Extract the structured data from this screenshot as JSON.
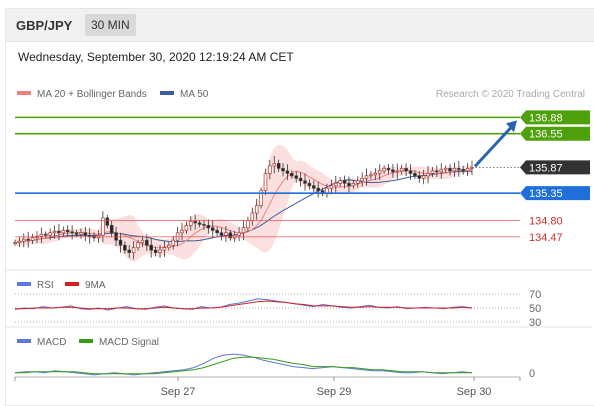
{
  "header": {
    "symbol": "GBP/JPY",
    "interval": "30 MIN",
    "datetime": "Wednesday, September 30, 2020 12:19:24 AM CET"
  },
  "legend": {
    "ma20_label": "MA 20 + Bollinger Bands",
    "ma50_label": "MA 50",
    "credit": "Research © 2020 Trading Central",
    "ma20_color": "#f08080",
    "ma50_color": "#3a5fa0"
  },
  "rsi_legend": {
    "rsi_label": "RSI",
    "ma_label": "9MA",
    "rsi_color": "#5a78d8",
    "ma_color": "#d42020"
  },
  "macd_legend": {
    "macd_label": "MACD",
    "signal_label": "MACD Signal",
    "macd_color": "#5a78d8",
    "signal_color": "#3a9a1a"
  },
  "chart_data": [
    {
      "type": "candlestick",
      "title": "GBP/JPY 30 MIN",
      "x_ticks": [
        "Sep 27",
        "Sep 29",
        "Sep 30"
      ],
      "ylim": [
        133.9,
        137.15
      ],
      "closes": [
        134.35,
        134.38,
        134.42,
        134.4,
        134.45,
        134.48,
        134.52,
        134.5,
        134.55,
        134.58,
        134.55,
        134.6,
        134.57,
        134.55,
        134.52,
        134.55,
        134.5,
        134.48,
        134.45,
        134.5,
        134.85,
        134.7,
        134.55,
        134.4,
        134.3,
        134.2,
        134.15,
        134.25,
        134.35,
        134.4,
        134.3,
        134.2,
        134.15,
        134.2,
        134.25,
        134.3,
        134.4,
        134.55,
        134.6,
        134.7,
        134.78,
        134.75,
        134.72,
        134.7,
        134.65,
        134.6,
        134.55,
        134.5,
        134.55,
        134.45,
        134.5,
        134.55,
        134.65,
        134.8,
        134.95,
        135.1,
        135.4,
        135.75,
        135.9,
        135.95,
        135.85,
        135.8,
        135.75,
        135.7,
        135.65,
        135.6,
        135.55,
        135.5,
        135.45,
        135.4,
        135.35,
        135.45,
        135.5,
        135.55,
        135.6,
        135.55,
        135.5,
        135.55,
        135.6,
        135.65,
        135.7,
        135.72,
        135.75,
        135.8,
        135.85,
        135.82,
        135.78,
        135.8,
        135.85,
        135.8,
        135.75,
        135.7,
        135.65,
        135.7,
        135.75,
        135.8,
        135.78,
        135.82,
        135.85,
        135.8,
        135.85,
        135.83,
        135.8,
        135.85,
        135.87
      ],
      "levels": [
        {
          "label": "136.88",
          "value": 136.88,
          "color": "#4ea10b"
        },
        {
          "label": "136.55",
          "value": 136.55,
          "color": "#4ea10b"
        },
        {
          "label": "135.87",
          "value": 135.87,
          "color": "#333333"
        },
        {
          "label": "135.35",
          "value": 135.35,
          "color": "#1e6fd9"
        },
        {
          "label": "134.80",
          "value": 134.8,
          "color": "#e05050"
        },
        {
          "label": "134.47",
          "value": 134.47,
          "color": "#e05050"
        }
      ],
      "projection": {
        "from": 135.87,
        "to": 136.88,
        "color": "#2a64b0"
      }
    },
    {
      "type": "line",
      "title": "RSI",
      "ticks": [
        "70",
        "50",
        "30"
      ],
      "series": [
        {
          "name": "RSI",
          "values": [
            48,
            50,
            49,
            52,
            50,
            51,
            53,
            49,
            48,
            50,
            47,
            50,
            52,
            49,
            48,
            51,
            53,
            50,
            49,
            48,
            52,
            50,
            51,
            55,
            57,
            60,
            63,
            62,
            60,
            58,
            56,
            54,
            52,
            55,
            53,
            51,
            50,
            52,
            54,
            51,
            50,
            52,
            49,
            50,
            51,
            50,
            49,
            51,
            52,
            50
          ]
        },
        {
          "name": "9MA",
          "values": [
            49,
            49,
            50,
            50,
            50,
            51,
            51,
            50,
            49,
            49,
            49,
            50,
            50,
            49,
            49,
            50,
            51,
            50,
            49,
            49,
            50,
            50,
            51,
            53,
            55,
            57,
            59,
            60,
            59,
            58,
            56,
            55,
            53,
            53,
            53,
            52,
            51,
            51,
            52,
            51,
            51,
            51,
            50,
            50,
            50,
            50,
            50,
            50,
            51,
            50
          ]
        }
      ]
    },
    {
      "type": "line",
      "title": "MACD",
      "ticks": [
        "0"
      ],
      "series": [
        {
          "name": "MACD",
          "values": [
            0.0,
            0.01,
            0.01,
            0.0,
            0.02,
            0.01,
            0.0,
            -0.01,
            -0.02,
            -0.01,
            0.0,
            -0.01,
            -0.02,
            -0.01,
            0.0,
            0.01,
            0.02,
            0.03,
            0.05,
            0.09,
            0.14,
            0.17,
            0.18,
            0.17,
            0.15,
            0.12,
            0.1,
            0.08,
            0.06,
            0.05,
            0.04,
            0.05,
            0.06,
            0.05,
            0.04,
            0.03,
            0.02,
            0.02,
            0.01,
            0.0,
            0.0,
            0.01,
            0.0,
            -0.01,
            0.0,
            0.01,
            0.0
          ]
        },
        {
          "name": "MACD Signal",
          "values": [
            0.0,
            0.0,
            0.01,
            0.01,
            0.01,
            0.01,
            0.01,
            0.0,
            -0.01,
            -0.01,
            -0.01,
            -0.01,
            -0.01,
            -0.01,
            -0.01,
            0.0,
            0.01,
            0.02,
            0.03,
            0.05,
            0.08,
            0.11,
            0.14,
            0.15,
            0.15,
            0.14,
            0.13,
            0.11,
            0.09,
            0.08,
            0.06,
            0.06,
            0.06,
            0.05,
            0.05,
            0.04,
            0.03,
            0.03,
            0.02,
            0.01,
            0.01,
            0.01,
            0.0,
            0.0,
            0.0,
            0.0,
            0.0
          ]
        }
      ]
    }
  ]
}
